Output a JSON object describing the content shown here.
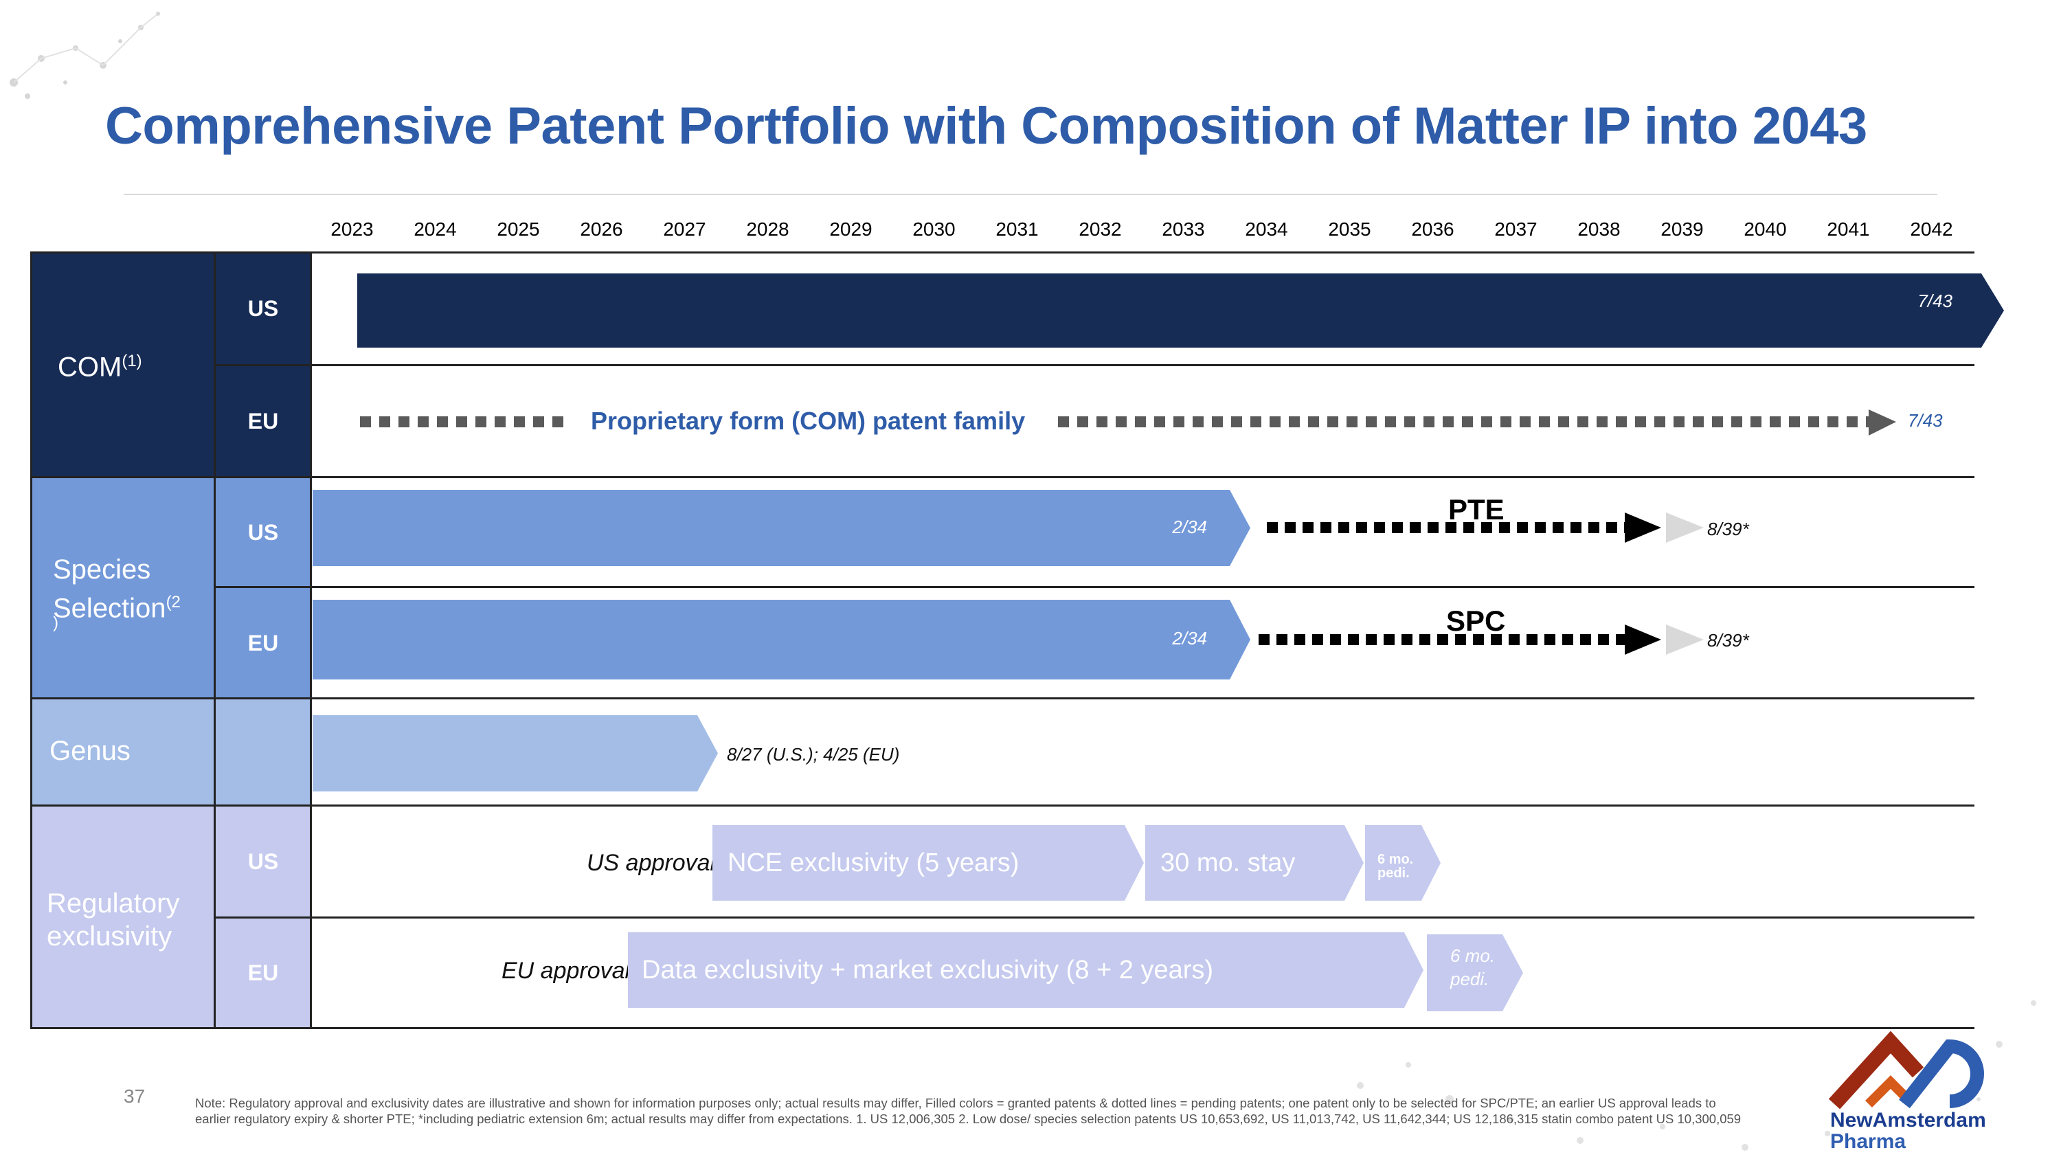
{
  "title": "Comprehensive Patent Portfolio with Composition of Matter IP into 2043",
  "years": [
    "2023",
    "2024",
    "2025",
    "2026",
    "2027",
    "2028",
    "2029",
    "2030",
    "2031",
    "2032",
    "2033",
    "2034",
    "2035",
    "2036",
    "2037",
    "2038",
    "2039",
    "2040",
    "2041",
    "2042"
  ],
  "categories": {
    "com": {
      "label": "COM",
      "sup": "(1)"
    },
    "species": {
      "label_line1": "Species",
      "label_line2": "Selection",
      "sup": "(2",
      "sup2": ")"
    },
    "genus": {
      "label": "Genus"
    },
    "regulatory": {
      "label_line1": "Regulatory",
      "label_line2": "exclusivity"
    }
  },
  "regions": {
    "us": "US",
    "eu": "EU"
  },
  "rows": {
    "com_us": {
      "end_label": "7/43"
    },
    "com_eu": {
      "center_label": "Proprietary form (COM) patent family",
      "end_label": "7/43"
    },
    "species_us": {
      "bar_label": "2/34",
      "ext_label": "PTE",
      "end_label": "8/39*"
    },
    "species_eu": {
      "bar_label": "2/34",
      "ext_label": "SPC",
      "end_label": "8/39*"
    },
    "genus": {
      "end_label": "8/27 (U.S.); 4/25 (EU)"
    },
    "reg_us": {
      "approval_label": "US approval",
      "nce": "NCE exclusivity (5 years)",
      "stay": "30 mo. stay",
      "pedi_line1": "6 mo.",
      "pedi_line2": "pedi."
    },
    "reg_eu": {
      "approval_label": "EU approval",
      "data": "Data exclusivity + market exclusivity (8 + 2 years)",
      "pedi_line1": "6 mo.",
      "pedi_line2": "pedi."
    }
  },
  "footnote": "Note: Regulatory approval and exclusivity dates are illustrative and shown for information purposes only; actual results may differ, Filled colors = granted patents & dotted lines = pending patents; one patent only to be selected for SPC/PTE; an earlier US approval leads to earlier regulatory expiry & shorter PTE; *including pediatric extension 6m; actual results may differ from expectations. 1. US 12,006,305 2. Low dose/ species selection patents US 10,653,692, US 11,013,742, US 11,642,344; US 12,186,315 statin combo patent US 10,300,059",
  "page_number": "37",
  "logo": {
    "line1": "NewAmsterdam",
    "line2": "Pharma"
  },
  "colors": {
    "navy": "#172c55",
    "species_blue": "#7399d9",
    "genus_blue": "#a3bde6",
    "regulatory_lavender": "#c5caee",
    "title_blue": "#2e5ca8"
  }
}
